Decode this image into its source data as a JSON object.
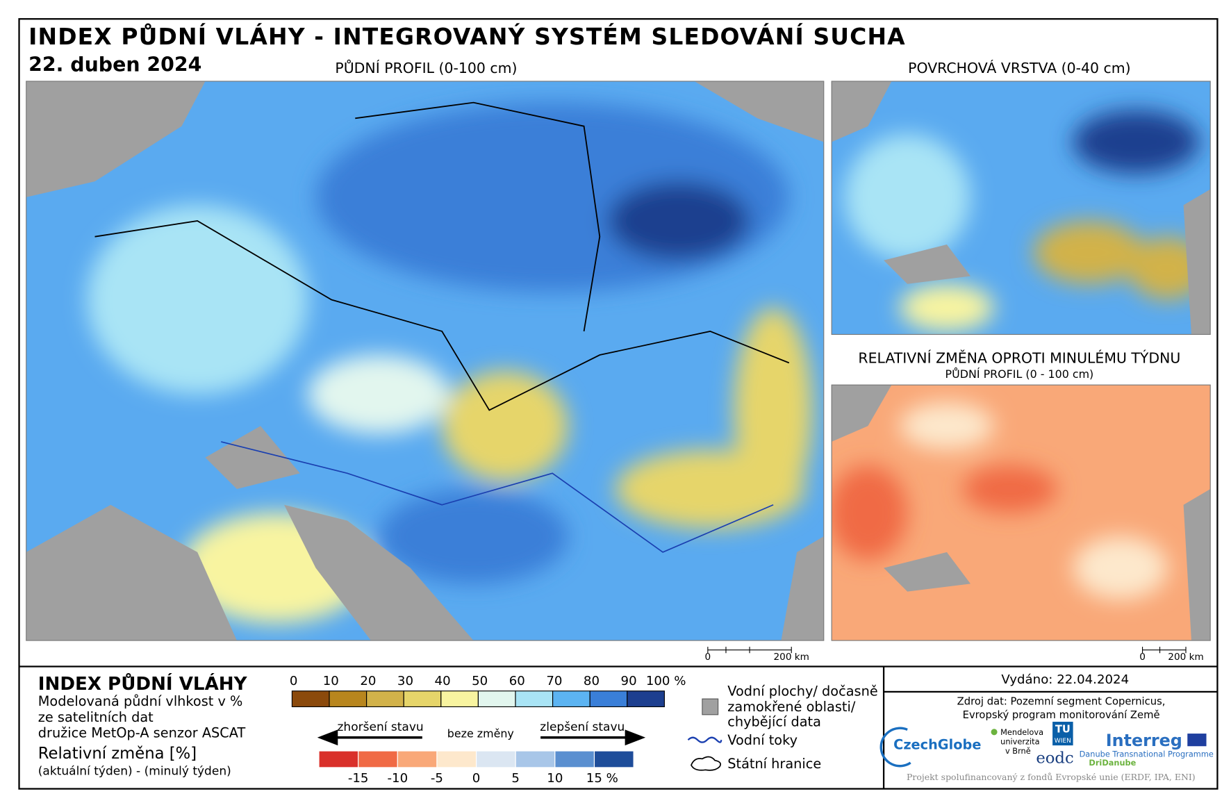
{
  "header": {
    "title": "INDEX PŮDNÍ VLÁHY - INTEGROVANÝ SYSTÉM SLEDOVÁNÍ SUCHA",
    "date": "22. duben 2024"
  },
  "maps": {
    "main_title": "PŮDNÍ PROFIL (0-100 cm)",
    "surface_title": "POVRCHOVÁ VRSTVA (0-40 cm)",
    "change_title": "RELATIVNÍ ZMĚNA OPROTI MINULÉMU TÝDNU",
    "change_subtitle": "PŮDNÍ PROFIL (0 - 100 cm)"
  },
  "scale_bars": [
    {
      "start": "0",
      "end": "200 km"
    },
    {
      "start": "0",
      "end": "200 km"
    }
  ],
  "legend": {
    "title": "INDEX PŮDNÍ VLÁHY",
    "lines": [
      "Modelovaná půdní vlhkost v %",
      "ze satelitních dat",
      "družice MetOp-A senzor ASCAT"
    ],
    "change_title": "Relativní změna [%]",
    "change_note": "(aktuální týden) - (minulý týden)",
    "index_labels": [
      "0",
      "10",
      "20",
      "30",
      "40",
      "50",
      "60",
      "70",
      "80",
      "90",
      "100 %"
    ],
    "index_colors": [
      "#8b4a0c",
      "#b8861e",
      "#d2b24a",
      "#e6d56a",
      "#f8f4a0",
      "#e2f6ee",
      "#a9e4f5",
      "#5cb4f2",
      "#3a7fd8",
      "#1d3f8f"
    ],
    "worse": "zhoršení stavu",
    "same": "beze změny",
    "better": "zlepšení stavu",
    "change_labels": [
      "-15",
      "-10",
      "-5",
      "0",
      "5",
      "10",
      "15 %"
    ],
    "change_colors": [
      "#d9302a",
      "#f06a45",
      "#f9a878",
      "#fde8cc",
      "#dbe6f2",
      "#a8c6e8",
      "#5a8fd0",
      "#1e4d9a"
    ],
    "water": [
      "Vodní plochy/ dočasně",
      "zamokřené oblasti/",
      "chybějící data"
    ],
    "rivers": "Vodní toky",
    "borders": "Státní hranice"
  },
  "footer": {
    "issued": "Vydáno: 22.04.2024",
    "source": [
      "Zdroj dat: Pozemní segment Copernicus,",
      "Evropský program monitorování Země"
    ],
    "logos": [
      "CzechGlobe",
      "Mendelova",
      "univerzita",
      "v Brně",
      "TU",
      "WIEN",
      "eodc",
      "Interreg",
      "Danube Transnational Programme",
      "DriDanube"
    ],
    "funding": "Projekt spolufinancovaný z fondů Evropské unie (ERDF, IPA, ENI)"
  }
}
